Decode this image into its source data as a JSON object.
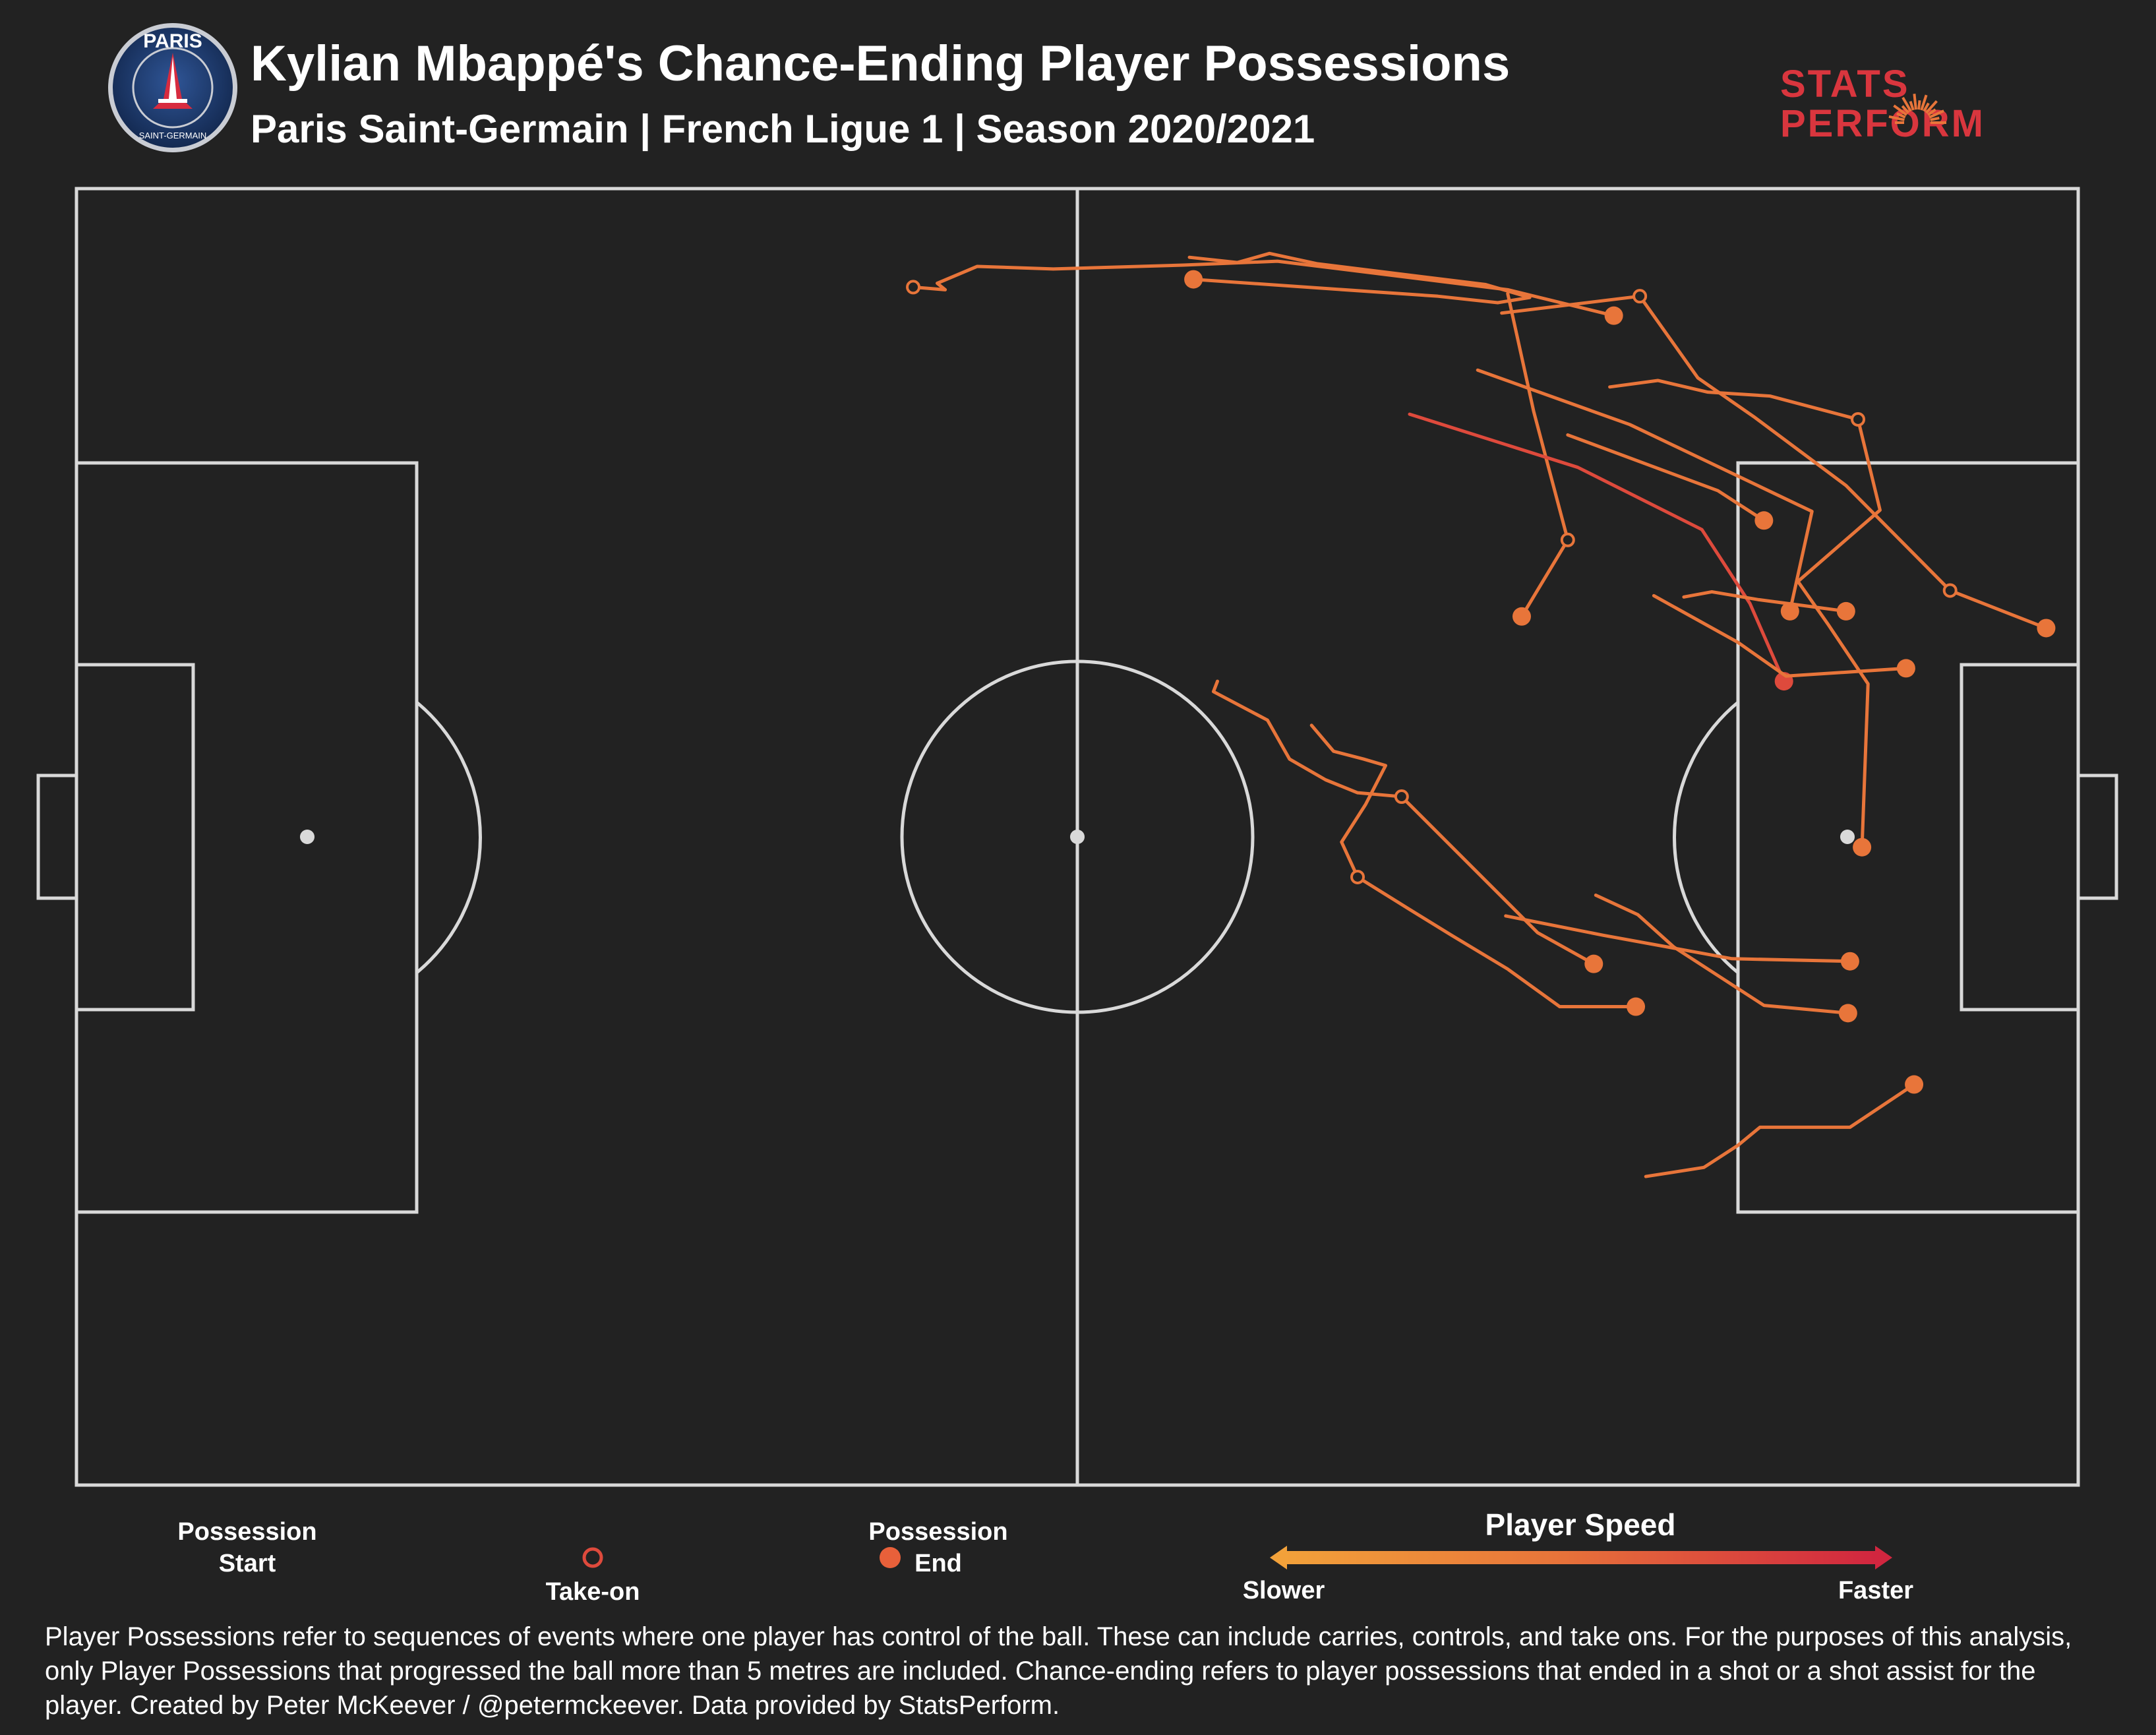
{
  "header": {
    "title": "Kylian Mbappé's Chance-Ending Player Possessions",
    "subtitle": "Paris Saint-Germain | French Ligue 1 | Season 2020/2021",
    "club_badge_text_top": "PARIS",
    "club_badge_text_bottom": "SAINT-GERMAIN",
    "brand_line1": "STATS",
    "brand_line2": "PERFORM"
  },
  "legend": {
    "start_label_1": "Possession",
    "start_label_2": "Start",
    "takeon_label": "Take-on",
    "end_label_1": "Possession",
    "end_label_2": "End",
    "speed_title": "Player Speed",
    "slower_label": "Slower",
    "faster_label": "Faster"
  },
  "footnote": "Player Possessions refer to sequences of events where one player has control of the ball. These can include carries, controls, and take ons. For the purposes of this analysis, only Player Possessions that progressed the ball more than 5 metres are included. Chance-ending refers to player possessions that ended in a shot or a shot assist for the player. Created by Peter McKeever / @petermckeever. Data provided by StatsPerform.",
  "colors": {
    "background": "#222222",
    "pitch_lines": "#d9d9d9",
    "speed_slow": "#f2a13a",
    "speed_mid": "#e8753a",
    "speed_fast": "#d1263f",
    "path_default": "#e8753a",
    "path_fast": "#de4a3c",
    "psg_blue": "#1f3a6b",
    "psg_red": "#d72b3f"
  },
  "chart_data": {
    "type": "scatter",
    "description_units": "pitch coordinates in percent of length (x, 0 = left goal line, 100 = right goal line) and width (y, 0 = top touchline, 100 = bottom touchline)",
    "xlim": [
      0,
      100
    ],
    "ylim": [
      0,
      100
    ],
    "possessions": [
      {
        "speed": "mid",
        "points": [
          [
            41.8,
            7.6
          ],
          [
            43.4,
            7.8
          ],
          [
            43.0,
            7.3
          ],
          [
            45.0,
            6.0
          ],
          [
            48.8,
            6.2
          ],
          [
            55.3,
            5.9
          ],
          [
            60.0,
            5.6
          ],
          [
            71.5,
            7.8
          ],
          [
            76.8,
            9.8
          ]
        ],
        "takeons": [
          0
        ],
        "start_marker": false
      },
      {
        "speed": "mid",
        "points": [
          [
            55.6,
            5.3
          ],
          [
            58.0,
            5.7
          ],
          [
            59.6,
            5.0
          ],
          [
            62.0,
            5.8
          ],
          [
            70.4,
            7.4
          ],
          [
            72.6,
            8.4
          ],
          [
            71.0,
            8.8
          ],
          [
            68.0,
            8.3
          ],
          [
            55.8,
            7.0
          ]
        ],
        "takeons": []
      },
      {
        "speed": "mid",
        "points": [
          [
            71.5,
            8.1
          ],
          [
            72.8,
            17.2
          ],
          [
            74.5,
            27.1
          ],
          [
            72.2,
            33.0
          ]
        ],
        "takeons": [
          2
        ],
        "reverse_start": true
      },
      {
        "speed": "mid",
        "points": [
          [
            71.2,
            9.6
          ],
          [
            78.1,
            8.3
          ],
          [
            81.0,
            14.6
          ],
          [
            83.8,
            17.6
          ],
          [
            88.4,
            22.9
          ],
          [
            93.6,
            31.0
          ],
          [
            98.4,
            33.9
          ]
        ],
        "takeons": [
          1,
          5
        ]
      },
      {
        "speed": "mid",
        "points": [
          [
            76.6,
            15.3
          ],
          [
            79.0,
            14.8
          ],
          [
            81.5,
            15.7
          ],
          [
            84.6,
            16.0
          ],
          [
            89.0,
            17.8
          ],
          [
            90.1,
            24.8
          ],
          [
            86.0,
            30.3
          ],
          [
            87.5,
            33.6
          ],
          [
            89.5,
            38.2
          ],
          [
            89.2,
            50.8
          ]
        ],
        "takeons": [
          4
        ]
      },
      {
        "speed": "mid",
        "points": [
          [
            70.0,
            14.0
          ],
          [
            77.6,
            18.2
          ],
          [
            86.7,
            24.9
          ],
          [
            85.6,
            32.6
          ]
        ],
        "takeons": []
      },
      {
        "speed": "fast",
        "points": [
          [
            66.6,
            17.4
          ],
          [
            75.0,
            21.5
          ],
          [
            81.2,
            26.3
          ],
          [
            83.6,
            32.0
          ],
          [
            85.3,
            38.0
          ]
        ],
        "takeons": [
          4
        ]
      },
      {
        "speed": "mid",
        "points": [
          [
            74.5,
            19.0
          ],
          [
            82.0,
            23.3
          ],
          [
            84.3,
            25.6
          ]
        ],
        "takeons": []
      },
      {
        "speed": "mid",
        "points": [
          [
            78.8,
            31.4
          ],
          [
            83.0,
            35.0
          ],
          [
            85.4,
            37.6
          ],
          [
            91.4,
            37.0
          ]
        ],
        "takeons": []
      },
      {
        "speed": "mid",
        "points": [
          [
            80.3,
            31.5
          ],
          [
            81.7,
            31.1
          ],
          [
            84.0,
            31.7
          ],
          [
            88.4,
            32.6
          ]
        ],
        "takeons": []
      },
      {
        "speed": "mid",
        "points": [
          [
            57.0,
            38.0
          ],
          [
            56.8,
            38.8
          ],
          [
            59.5,
            41.0
          ],
          [
            60.6,
            44.0
          ],
          [
            62.4,
            45.6
          ],
          [
            64.0,
            46.6
          ],
          [
            66.2,
            46.9
          ],
          [
            73.0,
            57.4
          ],
          [
            75.8,
            59.8
          ]
        ],
        "takeons": [
          6
        ]
      },
      {
        "speed": "mid",
        "points": [
          [
            61.7,
            41.4
          ],
          [
            62.8,
            43.4
          ],
          [
            64.3,
            44.0
          ],
          [
            65.4,
            44.5
          ],
          [
            64.4,
            47.5
          ],
          [
            63.2,
            50.4
          ],
          [
            64.0,
            53.1
          ],
          [
            66.6,
            55.6
          ],
          [
            68.7,
            57.6
          ],
          [
            71.5,
            60.2
          ],
          [
            74.1,
            63.1
          ],
          [
            77.9,
            63.1
          ]
        ],
        "takeons": [
          6
        ]
      },
      {
        "speed": "mid",
        "points": [
          [
            71.4,
            56.1
          ],
          [
            76.3,
            57.6
          ],
          [
            82.7,
            59.4
          ],
          [
            88.6,
            59.6
          ]
        ],
        "takeons": []
      },
      {
        "speed": "mid",
        "points": [
          [
            75.9,
            54.5
          ],
          [
            78.0,
            56.0
          ],
          [
            79.8,
            58.5
          ],
          [
            84.3,
            63.0
          ],
          [
            88.5,
            63.6
          ]
        ],
        "takeons": []
      },
      {
        "speed": "mid",
        "points": [
          [
            78.4,
            76.2
          ],
          [
            81.3,
            75.5
          ],
          [
            83.0,
            73.8
          ],
          [
            84.1,
            72.4
          ],
          [
            88.6,
            72.4
          ],
          [
            91.8,
            69.1
          ]
        ],
        "takeons": []
      }
    ]
  }
}
